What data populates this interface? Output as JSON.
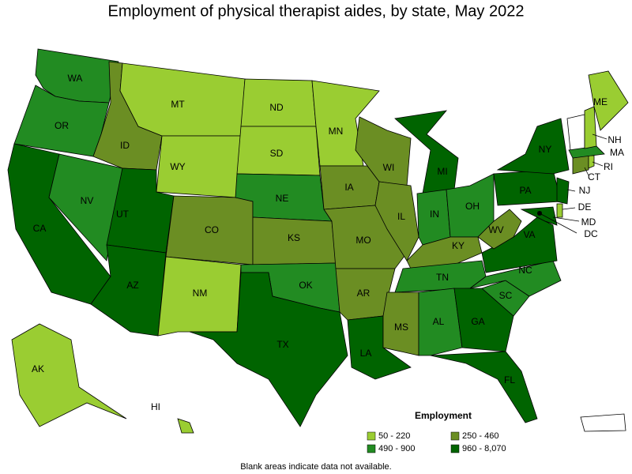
{
  "title": "Employment of physical therapist aides, by state, May 2022",
  "legend": {
    "title": "Employment",
    "items": [
      {
        "label": "50 - 220",
        "color": "#9acd32"
      },
      {
        "label": "250 - 460",
        "color": "#6b8e23"
      },
      {
        "label": "490 - 900",
        "color": "#228b22"
      },
      {
        "label": "960 - 8,070",
        "color": "#006400"
      }
    ]
  },
  "states": [
    {
      "label": "WA",
      "level": 2
    },
    {
      "label": "OR",
      "level": 2
    },
    {
      "label": "CA",
      "level": 3
    },
    {
      "label": "NV",
      "level": 2
    },
    {
      "label": "ID",
      "level": 1
    },
    {
      "label": "MT",
      "level": 0
    },
    {
      "label": "WY",
      "level": 0
    },
    {
      "label": "UT",
      "level": 3
    },
    {
      "label": "AZ",
      "level": 3
    },
    {
      "label": "CO",
      "level": 1
    },
    {
      "label": "NM",
      "level": 0
    },
    {
      "label": "ND",
      "level": 0
    },
    {
      "label": "SD",
      "level": 0
    },
    {
      "label": "NE",
      "level": 2
    },
    {
      "label": "KS",
      "level": 1
    },
    {
      "label": "OK",
      "level": 2
    },
    {
      "label": "TX",
      "level": 3
    },
    {
      "label": "MN",
      "level": 0
    },
    {
      "label": "IA",
      "level": 1
    },
    {
      "label": "MO",
      "level": 1
    },
    {
      "label": "AR",
      "level": 1
    },
    {
      "label": "LA",
      "level": 3
    },
    {
      "label": "WI",
      "level": 1
    },
    {
      "label": "IL",
      "level": 1
    },
    {
      "label": "MI",
      "level": 3
    },
    {
      "label": "IN",
      "level": 2
    },
    {
      "label": "OH",
      "level": 2
    },
    {
      "label": "KY",
      "level": 1
    },
    {
      "label": "TN",
      "level": 2
    },
    {
      "label": "MS",
      "level": 1
    },
    {
      "label": "AL",
      "level": 2
    },
    {
      "label": "GA",
      "level": 3
    },
    {
      "label": "FL",
      "level": 3
    },
    {
      "label": "SC",
      "level": 2
    },
    {
      "label": "NC",
      "level": 2
    },
    {
      "label": "VA",
      "level": 3
    },
    {
      "label": "WV",
      "level": 1
    },
    {
      "label": "PA",
      "level": 3
    },
    {
      "label": "NY",
      "level": 3
    },
    {
      "label": "MD",
      "level": 3
    },
    {
      "label": "DE",
      "level": 0
    },
    {
      "label": "NJ",
      "level": 3
    },
    {
      "label": "DC",
      "level": 3
    },
    {
      "label": "CT",
      "level": 1
    },
    {
      "label": "RI",
      "level": 0
    },
    {
      "label": "MA",
      "level": 2
    },
    {
      "label": "NH",
      "level": 0
    },
    {
      "label": "ME",
      "level": 0
    },
    {
      "label": "AK",
      "level": 0
    },
    {
      "label": "HI",
      "level": 0
    }
  ],
  "note": "Blank areas indicate data not available."
}
